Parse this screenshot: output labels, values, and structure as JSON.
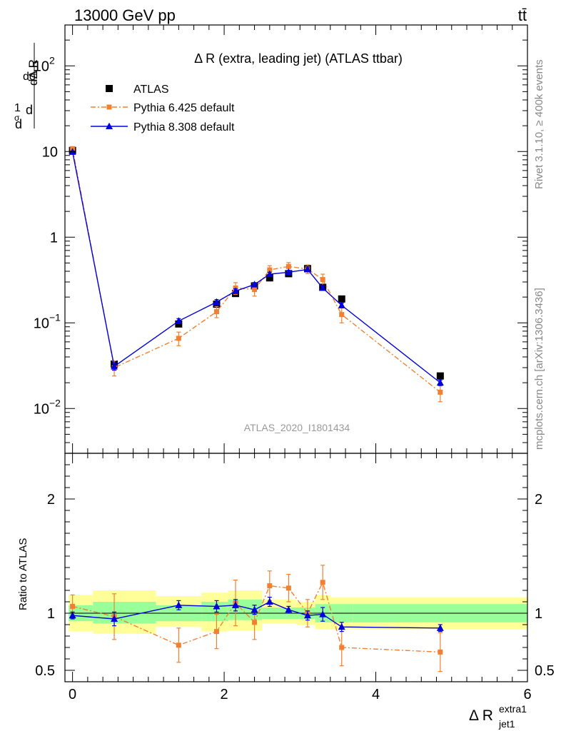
{
  "header": {
    "left": "13000 GeV pp",
    "right": "tt̄"
  },
  "side_labels": {
    "rivet": "Rivet 3.1.10, ≥ 400k events",
    "mcplots": "mcplots.cern.ch [arXiv:1306.3436]"
  },
  "colors": {
    "atlas": "#000000",
    "pythia6": "#f28030",
    "pythia8": "#0000dd",
    "band_outer": "#ffff99",
    "band_inner": "#99ff99"
  },
  "chart_data": [
    {
      "type": "scatter",
      "title": "Δ R (extra, leading jet) (ATLAS ttbar)",
      "watermark": "ATLAS_2020_I1801434",
      "ylabel": "dσ/dΔR normalized",
      "yscale": "log",
      "ylim": [
        0.003,
        300
      ],
      "xlim": [
        -0.1,
        6.0
      ],
      "y_ticks": [
        {
          "v": 0.01,
          "base": "10",
          "exp": "−2"
        },
        {
          "v": 0.1,
          "base": "10",
          "exp": "−1"
        },
        {
          "v": 1,
          "base": "1",
          "exp": ""
        },
        {
          "v": 10,
          "base": "10",
          "exp": ""
        },
        {
          "v": 100,
          "base": "10",
          "exp": "2"
        }
      ],
      "legend": {
        "placement": "top-left",
        "entries": [
          "ATLAS",
          "Pythia 6.425 default",
          "Pythia 8.308 default"
        ]
      },
      "series": [
        {
          "name": "ATLAS",
          "marker": "square",
          "x": [
            0.0,
            0.55,
            1.4,
            1.9,
            2.15,
            2.4,
            2.6,
            2.85,
            3.1,
            3.3,
            3.55,
            4.85
          ],
          "y": [
            10.3,
            0.033,
            0.097,
            0.165,
            0.22,
            0.27,
            0.335,
            0.375,
            0.43,
            0.26,
            0.19,
            0.024
          ]
        },
        {
          "name": "Pythia 6.425 default",
          "marker": "square",
          "dash": true,
          "x": [
            0.0,
            0.55,
            1.4,
            1.9,
            2.15,
            2.4,
            2.6,
            2.85,
            3.1,
            3.3,
            3.55,
            4.85
          ],
          "y": [
            10.8,
            0.03,
            0.066,
            0.135,
            0.255,
            0.245,
            0.415,
            0.455,
            0.425,
            0.32,
            0.125,
            0.0155
          ],
          "err": [
            0.5,
            0.006,
            0.012,
            0.02,
            0.04,
            0.04,
            0.05,
            0.05,
            0.05,
            0.05,
            0.025,
            0.0035
          ]
        },
        {
          "name": "Pythia 8.308 default",
          "marker": "triangle",
          "x": [
            0.0,
            0.55,
            1.4,
            1.9,
            2.15,
            2.4,
            2.6,
            2.85,
            3.1,
            3.3,
            3.55,
            4.85
          ],
          "y": [
            9.9,
            0.031,
            0.105,
            0.175,
            0.235,
            0.28,
            0.37,
            0.39,
            0.42,
            0.255,
            0.16,
            0.02
          ],
          "err": [
            0.2,
            0.003,
            0.007,
            0.012,
            0.015,
            0.015,
            0.02,
            0.02,
            0.02,
            0.015,
            0.01,
            0.0015
          ]
        }
      ]
    },
    {
      "type": "scatter",
      "ylabel": "Ratio to ATLAS",
      "xlabel_main": "Δ R",
      "xlabel_sup": "extra1",
      "xlabel_sub": "jet1",
      "xlim": [
        -0.1,
        6.0
      ],
      "ylim": [
        0.4,
        2.4
      ],
      "x_ticks": [
        0,
        2,
        4,
        6
      ],
      "y_ticks": [
        0.5,
        1,
        2
      ],
      "reference_line": 1,
      "bands": [
        {
          "x0": -0.05,
          "x1": 0.27,
          "outer": [
            0.84,
            1.16
          ],
          "inner": [
            0.93,
            1.07
          ]
        },
        {
          "x0": 0.27,
          "x1": 1.1,
          "outer": [
            0.82,
            1.2
          ],
          "inner": [
            0.91,
            1.1
          ]
        },
        {
          "x0": 1.1,
          "x1": 1.7,
          "outer": [
            0.88,
            1.15
          ],
          "inner": [
            0.93,
            1.07
          ]
        },
        {
          "x0": 1.7,
          "x1": 2.05,
          "outer": [
            0.84,
            1.18
          ],
          "inner": [
            0.93,
            1.1
          ]
        },
        {
          "x0": 2.05,
          "x1": 2.5,
          "outer": [
            0.85,
            1.2
          ],
          "inner": [
            0.94,
            1.12
          ]
        },
        {
          "x0": 2.5,
          "x1": 2.95,
          "outer": [
            0.91,
            1.12
          ],
          "inner": [
            0.95,
            1.05
          ]
        },
        {
          "x0": 2.95,
          "x1": 3.2,
          "outer": [
            0.9,
            1.1
          ],
          "inner": [
            0.95,
            1.05
          ]
        },
        {
          "x0": 3.2,
          "x1": 3.4,
          "outer": [
            0.86,
            1.16
          ],
          "inner": [
            0.92,
            1.08
          ]
        },
        {
          "x0": 3.4,
          "x1": 3.7,
          "outer": [
            0.86,
            1.14
          ],
          "inner": [
            0.92,
            1.08
          ]
        },
        {
          "x0": 3.7,
          "x1": 6.0,
          "outer": [
            0.86,
            1.14
          ],
          "inner": [
            0.92,
            1.08
          ]
        }
      ],
      "series": [
        {
          "name": "Pythia 6.425 default",
          "marker": "square",
          "dash": true,
          "x": [
            0.0,
            0.55,
            1.4,
            1.9,
            2.15,
            2.4,
            2.6,
            2.85,
            3.1,
            3.3,
            3.55,
            4.85
          ],
          "y": [
            1.06,
            0.97,
            0.72,
            0.84,
            1.09,
            0.92,
            1.24,
            1.22,
            1.0,
            1.27,
            0.7,
            0.66
          ],
          "err": [
            0.1,
            0.2,
            0.15,
            0.15,
            0.2,
            0.15,
            0.13,
            0.12,
            0.12,
            0.15,
            0.16,
            0.17
          ]
        },
        {
          "name": "Pythia 8.308 default",
          "marker": "triangle",
          "x": [
            0.0,
            0.55,
            1.4,
            1.9,
            2.15,
            2.4,
            2.6,
            2.85,
            3.1,
            3.3,
            3.55,
            4.85
          ],
          "y": [
            0.98,
            0.95,
            1.07,
            1.06,
            1.07,
            1.03,
            1.1,
            1.03,
            0.98,
            0.99,
            0.88,
            0.87
          ],
          "err": [
            0.03,
            0.06,
            0.04,
            0.05,
            0.05,
            0.04,
            0.04,
            0.03,
            0.04,
            0.06,
            0.04,
            0.03
          ]
        }
      ]
    }
  ]
}
